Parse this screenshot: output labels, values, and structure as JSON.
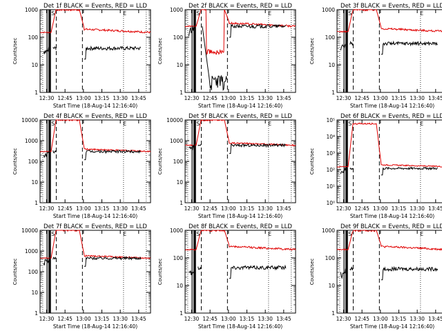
{
  "chart_data": [
    {
      "type": "line",
      "title": "Det 1f BLACK = Events, RED = LLD",
      "ylabel": "Counts/sec",
      "xlabel": "Start Time (18-Aug-14 12:16:40)",
      "x_ticks": [
        "12:30",
        "12:45",
        "13:00",
        "13:15",
        "13:30",
        "13:45"
      ],
      "y_scale": "log",
      "ylim": [
        1,
        1000
      ],
      "y_ticks": [
        "1",
        "10",
        "100",
        "1000"
      ],
      "markers": [
        "S",
        "E"
      ],
      "red_base": 150,
      "red_peak": 1000,
      "black_base": 40,
      "black_peak": null,
      "black_dip": null
    },
    {
      "type": "line",
      "title": "Det 2f BLACK = Events, RED = LLD",
      "ylabel": "Counts/sec",
      "xlabel": "Start Time (18-Aug-14 12:16:40)",
      "x_ticks": [
        "12:30",
        "12:45",
        "13:00",
        "13:15",
        "13:30",
        "13:45"
      ],
      "y_scale": "log",
      "ylim": [
        1,
        1000
      ],
      "y_ticks": [
        "1",
        "10",
        "100",
        "1000"
      ],
      "markers": [
        "S",
        "E"
      ],
      "red_base": 250,
      "red_peak": 1000,
      "black_base": 250,
      "black_peak": 1000,
      "black_dip": 1
    },
    {
      "type": "line",
      "title": "Det 3f BLACK = Events, RED = LLD",
      "ylabel": "Counts/sec",
      "xlabel": "Start Time (18-Aug-14 12:16:40)",
      "x_ticks": [
        "12:30",
        "12:45",
        "13:00",
        "13:15",
        "13:30",
        "13:45"
      ],
      "y_scale": "log",
      "ylim": [
        1,
        1000
      ],
      "y_ticks": [
        "1",
        "10",
        "100",
        "1000"
      ],
      "markers": [
        "S",
        "E"
      ],
      "red_base": 160,
      "red_peak": 1000,
      "black_base": 60,
      "black_peak": null,
      "black_dip": null
    },
    {
      "type": "line",
      "title": "Det 4f BLACK = Events, RED = LLD",
      "ylabel": "Counts/sec",
      "xlabel": "Start Time (18-Aug-14 12:16:40)",
      "x_ticks": [
        "12:30",
        "12:45",
        "13:00",
        "13:15",
        "13:30",
        "13:45"
      ],
      "y_scale": "log",
      "ylim": [
        1,
        10000
      ],
      "y_ticks": [
        "1",
        "10",
        "100",
        "1000",
        "10000"
      ],
      "markers": [
        "S",
        "E"
      ],
      "red_base": 300,
      "red_peak": 10000,
      "black_base": 300,
      "black_peak": null,
      "black_dip": null
    },
    {
      "type": "line",
      "title": "Det 5f BLACK = Events, RED = LLD",
      "ylabel": "Counts/sec",
      "xlabel": "Start Time (18-Aug-14 12:16:40)",
      "x_ticks": [
        "12:30",
        "12:45",
        "13:00",
        "13:15",
        "13:30",
        "13:45"
      ],
      "y_scale": "log",
      "ylim": [
        1,
        10000
      ],
      "y_ticks": [
        "1",
        "10",
        "100",
        "1000",
        "10000"
      ],
      "markers": [
        "S",
        "E"
      ],
      "red_base": 600,
      "red_peak": 10000,
      "black_base": 600,
      "black_peak": null,
      "black_dip": null
    },
    {
      "type": "line",
      "title": "Det 6f BLACK = Events, RED = LLD",
      "ylabel": "Counts/sec",
      "xlabel": "Start Time (18-Aug-14 12:16:40)",
      "x_ticks": [
        "12:30",
        "12:45",
        "13:00",
        "13:15",
        "13:30",
        "13:45"
      ],
      "y_scale": "log",
      "ylim": [
        1,
        100000
      ],
      "y_ticks": [
        "10⁰",
        "10¹",
        "10²",
        "10³",
        "10⁴",
        "10⁵"
      ],
      "markers": [
        "S",
        "E"
      ],
      "red_base": 150,
      "red_peak": 60000,
      "black_base": 120,
      "black_peak": null,
      "black_dip": null
    },
    {
      "type": "line",
      "title": "Det 7f BLACK = Events, RED = LLD",
      "ylabel": "Counts/sec",
      "xlabel": "Start Time (18-Aug-14 12:16:40)",
      "x_ticks": [
        "12:30",
        "12:45",
        "13:00",
        "13:15",
        "13:30",
        "13:45"
      ],
      "y_scale": "log",
      "ylim": [
        1,
        10000
      ],
      "y_ticks": [
        "1",
        "10",
        "100",
        "1000",
        "10000"
      ],
      "markers": [
        "S",
        "E"
      ],
      "red_base": 450,
      "red_peak": 10000,
      "black_base": 450,
      "black_peak": null,
      "black_dip": null
    },
    {
      "type": "line",
      "title": "Det 8f BLACK = Events, RED = LLD",
      "ylabel": "Counts/sec",
      "xlabel": "Start Time (18-Aug-14 12:16:40)",
      "x_ticks": [
        "12:30",
        "12:45",
        "13:00",
        "13:15",
        "13:30",
        "13:45"
      ],
      "y_scale": "log",
      "ylim": [
        1,
        1000
      ],
      "y_ticks": [
        "1",
        "10",
        "100",
        "1000"
      ],
      "markers": [
        "S",
        "E"
      ],
      "red_base": 200,
      "red_peak": 1000,
      "black_base": 45,
      "black_peak": null,
      "black_dip": null
    },
    {
      "type": "line",
      "title": "Det 9f BLACK = Events, RED = LLD",
      "ylabel": "Counts/sec",
      "xlabel": "Start Time (18-Aug-14 12:16:40)",
      "x_ticks": [
        "12:30",
        "12:45",
        "13:00",
        "13:15",
        "13:30",
        "13:45"
      ],
      "y_scale": "log",
      "ylim": [
        1,
        1000
      ],
      "y_ticks": [
        "1",
        "10",
        "100",
        "1000"
      ],
      "markers": [
        "S",
        "E"
      ],
      "red_base": 200,
      "red_peak": 1000,
      "black_base": 40,
      "black_peak": null,
      "black_dip": null
    }
  ]
}
